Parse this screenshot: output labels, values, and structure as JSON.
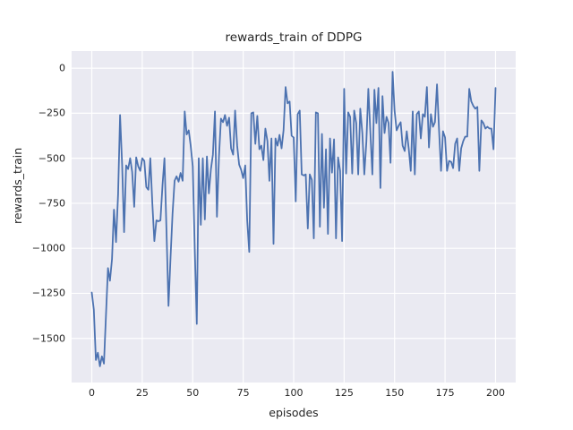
{
  "figure": {
    "title": "rewards_train of DDPG",
    "xlabel": "episodes",
    "ylabel": "rewards_train"
  },
  "colors": {
    "line": "#4C72B0",
    "plot_background": "#EAEAF2",
    "grid": "#FFFFFF",
    "figure_background": "#FFFFFF",
    "text": "#262626"
  },
  "chart_data": {
    "type": "line",
    "title": "rewards_train of DDPG",
    "xlabel": "episodes",
    "ylabel": "rewards_train",
    "legend": "none",
    "grid": true,
    "xlim": [
      -10,
      210
    ],
    "ylim": [
      -1745,
      95
    ],
    "x_ticks": [
      0,
      25,
      50,
      75,
      100,
      125,
      150,
      175,
      200
    ],
    "x_tick_labels": [
      "0",
      "25",
      "50",
      "75",
      "100",
      "125",
      "150",
      "175",
      "200"
    ],
    "y_ticks": [
      0,
      -250,
      -500,
      -750,
      -1000,
      -1250,
      -1500
    ],
    "y_tick_labels": [
      "0",
      "−250",
      "−500",
      "−750",
      "−1000",
      "−1250",
      "−1500"
    ],
    "line_color": "#4C72B0",
    "line_width": 1.8,
    "series": [
      {
        "name": "rewards_train",
        "x_start": 0,
        "x_step": 1,
        "y": [
          -1245,
          -1340,
          -1620,
          -1580,
          -1655,
          -1600,
          -1640,
          -1380,
          -1110,
          -1180,
          -1060,
          -785,
          -965,
          -700,
          -260,
          -535,
          -910,
          -540,
          -560,
          -500,
          -575,
          -770,
          -495,
          -545,
          -570,
          -500,
          -515,
          -660,
          -675,
          -500,
          -755,
          -960,
          -845,
          -850,
          -845,
          -650,
          -500,
          -910,
          -1320,
          -1050,
          -810,
          -625,
          -600,
          -630,
          -582,
          -625,
          -240,
          -368,
          -345,
          -430,
          -545,
          -1000,
          -1420,
          -500,
          -870,
          -500,
          -840,
          -490,
          -695,
          -560,
          -480,
          -240,
          -825,
          -490,
          -280,
          -300,
          -260,
          -320,
          -275,
          -445,
          -480,
          -235,
          -430,
          -535,
          -565,
          -610,
          -540,
          -845,
          -1020,
          -250,
          -245,
          -420,
          -265,
          -450,
          -430,
          -510,
          -335,
          -405,
          -625,
          -390,
          -975,
          -390,
          -430,
          -370,
          -445,
          -345,
          -105,
          -195,
          -185,
          -375,
          -385,
          -740,
          -255,
          -235,
          -590,
          -595,
          -590,
          -890,
          -590,
          -620,
          -945,
          -245,
          -250,
          -880,
          -365,
          -775,
          -450,
          -920,
          -390,
          -580,
          -395,
          -945,
          -495,
          -570,
          -960,
          -115,
          -585,
          -245,
          -270,
          -585,
          -235,
          -305,
          -590,
          -225,
          -360,
          -590,
          -410,
          -115,
          -360,
          -590,
          -120,
          -305,
          -110,
          -665,
          -155,
          -360,
          -270,
          -305,
          -525,
          -20,
          -235,
          -345,
          -320,
          -300,
          -430,
          -460,
          -350,
          -445,
          -570,
          -240,
          -590,
          -255,
          -240,
          -390,
          -255,
          -270,
          -105,
          -440,
          -255,
          -325,
          -300,
          -90,
          -335,
          -570,
          -350,
          -385,
          -570,
          -515,
          -520,
          -555,
          -420,
          -390,
          -570,
          -445,
          -405,
          -380,
          -380,
          -115,
          -185,
          -210,
          -225,
          -215,
          -570,
          -290,
          -305,
          -335,
          -325,
          -335,
          -335,
          -450,
          -110
        ]
      }
    ]
  }
}
